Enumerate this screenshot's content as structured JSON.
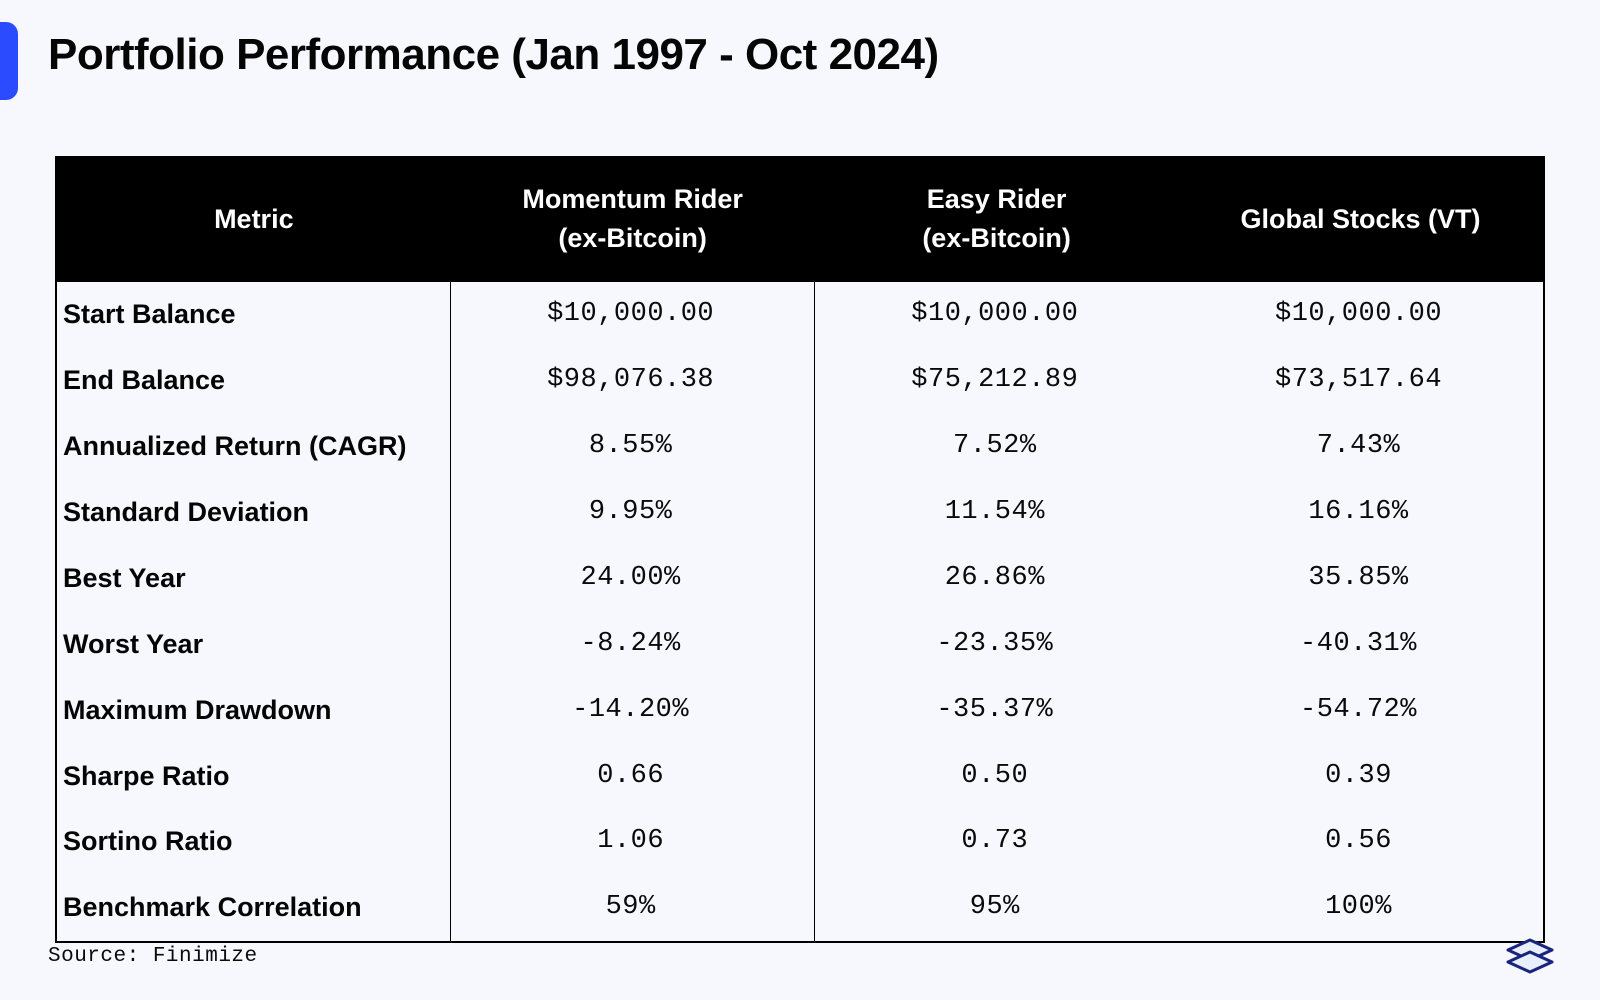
{
  "title": "Portfolio Performance (Jan 1997 - Oct 2024)",
  "source": "Source: Finimize",
  "table": {
    "type": "table",
    "header_bg": "#000000",
    "header_fg": "#ffffff",
    "background_color": "#f6f8fd",
    "border_color": "#000000",
    "title_fontsize": 44,
    "header_fontsize": 27,
    "cell_fontsize": 27,
    "metric_font_weight": 700,
    "value_font_family": "Courier New",
    "columns": [
      {
        "label": "Metric",
        "sublabel": "",
        "width_pct": 26.5,
        "align": "left"
      },
      {
        "label": "Momentum Rider",
        "sublabel": "(ex-Bitcoin)",
        "width_pct": 24.5,
        "align": "center"
      },
      {
        "label": "Easy Rider",
        "sublabel": "(ex-Bitcoin)",
        "width_pct": 24.5,
        "align": "center"
      },
      {
        "label": "Global Stocks (VT)",
        "sublabel": "",
        "width_pct": 24.5,
        "align": "center"
      }
    ],
    "rows": [
      {
        "metric": "Start Balance",
        "values": [
          "$10,000.00",
          "$10,000.00",
          "$10,000.00"
        ]
      },
      {
        "metric": "End Balance",
        "values": [
          "$98,076.38",
          "$75,212.89",
          "$73,517.64"
        ]
      },
      {
        "metric": "Annualized Return (CAGR)",
        "values": [
          "8.55%",
          "7.52%",
          "7.43%"
        ]
      },
      {
        "metric": "Standard Deviation",
        "values": [
          "9.95%",
          "11.54%",
          "16.16%"
        ]
      },
      {
        "metric": "Best Year",
        "values": [
          "24.00%",
          "26.86%",
          "35.85%"
        ]
      },
      {
        "metric": "Worst Year",
        "values": [
          "-8.24%",
          "-23.35%",
          "-40.31%"
        ]
      },
      {
        "metric": "Maximum Drawdown",
        "values": [
          "-14.20%",
          "-35.37%",
          "-54.72%"
        ]
      },
      {
        "metric": "Sharpe Ratio",
        "values": [
          "0.66",
          "0.50",
          "0.39"
        ]
      },
      {
        "metric": "Sortino Ratio",
        "values": [
          "1.06",
          "0.73",
          "0.56"
        ]
      },
      {
        "metric": "Benchmark Correlation",
        "values": [
          "59%",
          "95%",
          "100%"
        ]
      }
    ]
  },
  "accent_color": "#2a4bff",
  "logo_color": "#1a237e"
}
